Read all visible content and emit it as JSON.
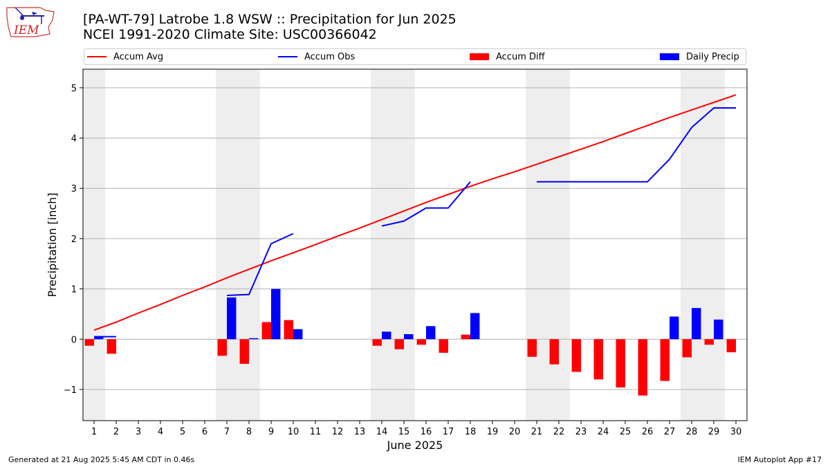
{
  "title_line1": "[PA-WT-79] Latrobe 1.8 WSW :: Precipitation for Jun 2025",
  "title_line2": "NCEI 1991-2020 Climate Site: USC00366042",
  "logo_text": "IEM",
  "legend": {
    "accum_avg": "Accum Avg",
    "accum_obs": "Accum Obs",
    "accum_diff": "Accum Diff",
    "daily_precip": "Daily Precip"
  },
  "colors": {
    "accum_avg": "#ff0000",
    "accum_obs": "#0000ff",
    "accum_diff": "#ff0000",
    "daily_precip": "#0000ff",
    "weekend_shade": "#eeeeee",
    "grid": "#b0b0b0"
  },
  "footer_left": "Generated at 21 Aug 2025 5:45 AM CDT in 0.46s",
  "footer_right": "IEM Autoplot App #17",
  "chart_data": {
    "type": "bar",
    "title": "[PA-WT-79] Latrobe 1.8 WSW :: Precipitation for Jun 2025",
    "subtitle": "NCEI 1991-2020 Climate Site: USC00366042",
    "xlabel": "June 2025",
    "ylabel": "Precipitation [inch]",
    "ylim": [
      -1.62,
      5.37
    ],
    "yticks": [
      -1,
      0,
      1,
      2,
      3,
      4,
      5
    ],
    "ytick_labels": [
      "−1",
      "0",
      "1",
      "2",
      "3",
      "4",
      "5"
    ],
    "grid": "horizontal",
    "legend_position": "top",
    "categories": [
      1,
      2,
      3,
      4,
      5,
      6,
      7,
      8,
      9,
      10,
      11,
      12,
      13,
      14,
      15,
      16,
      17,
      18,
      19,
      20,
      21,
      22,
      23,
      24,
      25,
      26,
      27,
      28,
      29,
      30
    ],
    "shaded_days": [
      1,
      7,
      8,
      14,
      15,
      21,
      22,
      28,
      29
    ],
    "series": [
      {
        "name": "Accum Avg",
        "kind": "line",
        "values": [
          0.18,
          0.34,
          0.52,
          0.69,
          0.87,
          1.04,
          1.22,
          1.39,
          1.56,
          1.72,
          1.88,
          2.05,
          2.21,
          2.38,
          2.55,
          2.72,
          2.88,
          3.04,
          3.19,
          3.33,
          3.48,
          3.63,
          3.78,
          3.93,
          4.09,
          4.25,
          4.41,
          4.56,
          4.71,
          4.86
        ]
      },
      {
        "name": "Accum Obs",
        "kind": "line",
        "values": [
          0.05,
          0.05,
          null,
          null,
          null,
          null,
          0.87,
          0.89,
          1.9,
          2.1,
          null,
          null,
          null,
          2.25,
          2.35,
          2.61,
          2.61,
          3.13,
          null,
          null,
          3.13,
          3.13,
          3.13,
          3.13,
          3.13,
          3.13,
          3.58,
          4.21,
          4.6,
          4.6
        ]
      },
      {
        "name": "Accum Diff",
        "kind": "bar",
        "values": [
          -0.13,
          -0.29,
          null,
          null,
          null,
          null,
          -0.33,
          -0.49,
          0.34,
          0.38,
          null,
          null,
          null,
          -0.13,
          -0.2,
          -0.11,
          -0.27,
          0.09,
          null,
          null,
          -0.35,
          -0.5,
          -0.65,
          -0.8,
          -0.96,
          -1.12,
          -0.83,
          -0.36,
          -0.11,
          -0.26
        ]
      },
      {
        "name": "Daily Precip",
        "kind": "bar",
        "values": [
          0.05,
          null,
          null,
          null,
          null,
          null,
          0.83,
          0.02,
          1.0,
          0.2,
          null,
          null,
          null,
          0.15,
          0.1,
          0.26,
          null,
          0.52,
          null,
          null,
          null,
          null,
          null,
          null,
          null,
          null,
          0.45,
          0.62,
          0.39,
          null
        ]
      }
    ]
  }
}
